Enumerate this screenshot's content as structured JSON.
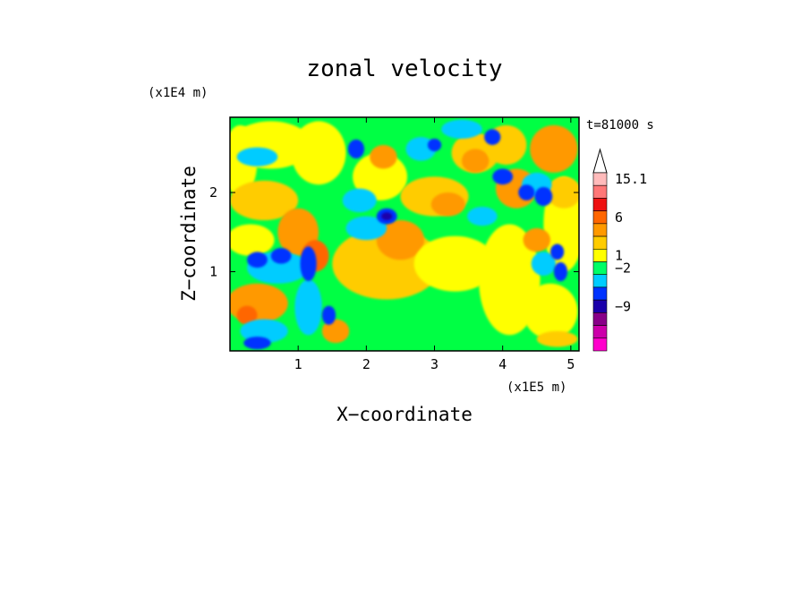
{
  "chart_data": {
    "type": "heatmap",
    "title": "zonal velocity",
    "xlabel": "X−coordinate",
    "ylabel": "Z−coordinate",
    "x_scale_label": "(x1E5 m)",
    "y_scale_label": "(x1E4 m)",
    "time_label": "t=81000 s",
    "xlim": [
      0,
      5.12
    ],
    "ylim": [
      0,
      2.95
    ],
    "x_ticks": [
      {
        "value": 1,
        "label": "1"
      },
      {
        "value": 2,
        "label": "2"
      },
      {
        "value": 3,
        "label": "3"
      },
      {
        "value": 4,
        "label": "4"
      },
      {
        "value": 5,
        "label": "5"
      }
    ],
    "y_ticks": [
      {
        "value": 1,
        "label": "1"
      },
      {
        "value": 2,
        "label": "2"
      }
    ],
    "colorbar": {
      "levels": [
        {
          "color": "#ff00cc"
        },
        {
          "color": "#cc00aa"
        },
        {
          "color": "#880088"
        },
        {
          "color": "#1a00aa"
        },
        {
          "color": "#0033ff"
        },
        {
          "color": "#00ccff"
        },
        {
          "color": "#00ff66"
        },
        {
          "color": "#ffff00"
        },
        {
          "color": "#ffcc00"
        },
        {
          "color": "#ff9900"
        },
        {
          "color": "#ff6600"
        },
        {
          "color": "#ee1111"
        },
        {
          "color": "#ff7777"
        },
        {
          "color": "#ffbbbb"
        }
      ],
      "labels": [
        {
          "value": "15.1",
          "row": 0
        },
        {
          "value": "6",
          "row": 3
        },
        {
          "value": "1",
          "row": 6
        },
        {
          "value": "−2",
          "row": 7
        },
        {
          "value": "−9",
          "row": 10
        }
      ]
    },
    "field": {
      "background_color": "#00ff44",
      "blobs": [
        {
          "x": 0.15,
          "z": 2.4,
          "rx": 0.25,
          "rz": 0.45,
          "c": "#ffff00"
        },
        {
          "x": 0.6,
          "z": 2.6,
          "rx": 0.6,
          "rz": 0.3,
          "c": "#ffff00"
        },
        {
          "x": 1.3,
          "z": 2.5,
          "rx": 0.4,
          "rz": 0.4,
          "c": "#ffff00"
        },
        {
          "x": 0.5,
          "z": 1.9,
          "rx": 0.5,
          "rz": 0.25,
          "c": "#ffcc00"
        },
        {
          "x": 0.3,
          "z": 1.4,
          "rx": 0.35,
          "rz": 0.2,
          "c": "#ffff00"
        },
        {
          "x": 1.0,
          "z": 1.5,
          "rx": 0.3,
          "rz": 0.3,
          "c": "#ff9900"
        },
        {
          "x": 1.25,
          "z": 1.2,
          "rx": 0.2,
          "rz": 0.2,
          "c": "#ff6600"
        },
        {
          "x": 0.4,
          "z": 0.6,
          "rx": 0.45,
          "rz": 0.25,
          "c": "#ff9900"
        },
        {
          "x": 0.25,
          "z": 0.45,
          "rx": 0.15,
          "rz": 0.12,
          "c": "#ff6600"
        },
        {
          "x": 1.55,
          "z": 0.25,
          "rx": 0.2,
          "rz": 0.15,
          "c": "#ff9900"
        },
        {
          "x": 2.3,
          "z": 1.1,
          "rx": 0.8,
          "rz": 0.45,
          "c": "#ffcc00"
        },
        {
          "x": 2.5,
          "z": 1.4,
          "rx": 0.35,
          "rz": 0.25,
          "c": "#ff9900"
        },
        {
          "x": 3.3,
          "z": 1.1,
          "rx": 0.6,
          "rz": 0.35,
          "c": "#ffff00"
        },
        {
          "x": 4.1,
          "z": 0.9,
          "rx": 0.45,
          "rz": 0.7,
          "c": "#ffff00"
        },
        {
          "x": 4.7,
          "z": 0.5,
          "rx": 0.4,
          "rz": 0.35,
          "c": "#ffff00"
        },
        {
          "x": 4.9,
          "z": 1.6,
          "rx": 0.3,
          "rz": 0.6,
          "c": "#ffff00"
        },
        {
          "x": 2.2,
          "z": 2.2,
          "rx": 0.4,
          "rz": 0.3,
          "c": "#ffff00"
        },
        {
          "x": 2.25,
          "z": 2.45,
          "rx": 0.2,
          "rz": 0.15,
          "c": "#ff9900"
        },
        {
          "x": 3.0,
          "z": 1.95,
          "rx": 0.5,
          "rz": 0.25,
          "c": "#ffcc00"
        },
        {
          "x": 3.2,
          "z": 1.85,
          "rx": 0.25,
          "rz": 0.15,
          "c": "#ff9900"
        },
        {
          "x": 3.6,
          "z": 2.5,
          "rx": 0.35,
          "rz": 0.25,
          "c": "#ffcc00"
        },
        {
          "x": 3.6,
          "z": 2.4,
          "rx": 0.2,
          "rz": 0.15,
          "c": "#ff9900"
        },
        {
          "x": 4.05,
          "z": 2.6,
          "rx": 0.3,
          "rz": 0.25,
          "c": "#ffcc00"
        },
        {
          "x": 4.2,
          "z": 2.05,
          "rx": 0.3,
          "rz": 0.25,
          "c": "#ff9900"
        },
        {
          "x": 4.75,
          "z": 2.55,
          "rx": 0.35,
          "rz": 0.3,
          "c": "#ff9900"
        },
        {
          "x": 4.9,
          "z": 2.0,
          "rx": 0.25,
          "rz": 0.2,
          "c": "#ffcc00"
        },
        {
          "x": 4.5,
          "z": 1.4,
          "rx": 0.2,
          "rz": 0.15,
          "c": "#ff9900"
        },
        {
          "x": 4.8,
          "z": 0.15,
          "rx": 0.3,
          "rz": 0.1,
          "c": "#ffcc00"
        },
        {
          "x": 3.4,
          "z": 2.8,
          "rx": 0.3,
          "rz": 0.12,
          "c": "#00ccff"
        },
        {
          "x": 2.8,
          "z": 2.55,
          "rx": 0.22,
          "rz": 0.15,
          "c": "#00ccff"
        },
        {
          "x": 2.0,
          "z": 1.55,
          "rx": 0.3,
          "rz": 0.15,
          "c": "#00ccff"
        },
        {
          "x": 1.9,
          "z": 1.9,
          "rx": 0.25,
          "rz": 0.15,
          "c": "#00ccff"
        },
        {
          "x": 4.5,
          "z": 2.1,
          "rx": 0.22,
          "rz": 0.15,
          "c": "#00ccff"
        },
        {
          "x": 3.7,
          "z": 1.7,
          "rx": 0.22,
          "rz": 0.12,
          "c": "#00ccff"
        },
        {
          "x": 4.6,
          "z": 1.1,
          "rx": 0.18,
          "rz": 0.15,
          "c": "#00ccff"
        },
        {
          "x": 0.7,
          "z": 1.05,
          "rx": 0.45,
          "rz": 0.2,
          "c": "#00ccff"
        },
        {
          "x": 0.5,
          "z": 0.25,
          "rx": 0.35,
          "rz": 0.15,
          "c": "#00ccff"
        },
        {
          "x": 1.15,
          "z": 0.55,
          "rx": 0.2,
          "rz": 0.35,
          "c": "#00ccff"
        },
        {
          "x": 0.4,
          "z": 2.45,
          "rx": 0.3,
          "rz": 0.12,
          "c": "#00ccff"
        },
        {
          "x": 1.85,
          "z": 2.55,
          "rx": 0.12,
          "rz": 0.12,
          "c": "#0033ff"
        },
        {
          "x": 3.85,
          "z": 2.7,
          "rx": 0.12,
          "rz": 0.1,
          "c": "#0033ff"
        },
        {
          "x": 2.3,
          "z": 1.7,
          "rx": 0.15,
          "rz": 0.1,
          "c": "#0033ff"
        },
        {
          "x": 1.15,
          "z": 1.1,
          "rx": 0.12,
          "rz": 0.22,
          "c": "#0033ff"
        },
        {
          "x": 0.75,
          "z": 1.2,
          "rx": 0.15,
          "rz": 0.1,
          "c": "#0033ff"
        },
        {
          "x": 0.4,
          "z": 1.15,
          "rx": 0.15,
          "rz": 0.1,
          "c": "#0033ff"
        },
        {
          "x": 1.45,
          "z": 0.45,
          "rx": 0.1,
          "rz": 0.12,
          "c": "#0033ff"
        },
        {
          "x": 0.4,
          "z": 0.1,
          "rx": 0.2,
          "rz": 0.08,
          "c": "#0033ff"
        },
        {
          "x": 2.3,
          "z": 1.7,
          "rx": 0.08,
          "rz": 0.05,
          "c": "#1a00aa"
        },
        {
          "x": 4.6,
          "z": 1.95,
          "rx": 0.13,
          "rz": 0.12,
          "c": "#0033ff"
        },
        {
          "x": 4.0,
          "z": 2.2,
          "rx": 0.15,
          "rz": 0.1,
          "c": "#0033ff"
        },
        {
          "x": 4.35,
          "z": 2.0,
          "rx": 0.12,
          "rz": 0.1,
          "c": "#0033ff"
        },
        {
          "x": 4.85,
          "z": 1.0,
          "rx": 0.1,
          "rz": 0.12,
          "c": "#0033ff"
        },
        {
          "x": 4.8,
          "z": 1.25,
          "rx": 0.1,
          "rz": 0.1,
          "c": "#0033ff"
        },
        {
          "x": 3.0,
          "z": 2.6,
          "rx": 0.1,
          "rz": 0.08,
          "c": "#0033ff"
        }
      ]
    }
  }
}
